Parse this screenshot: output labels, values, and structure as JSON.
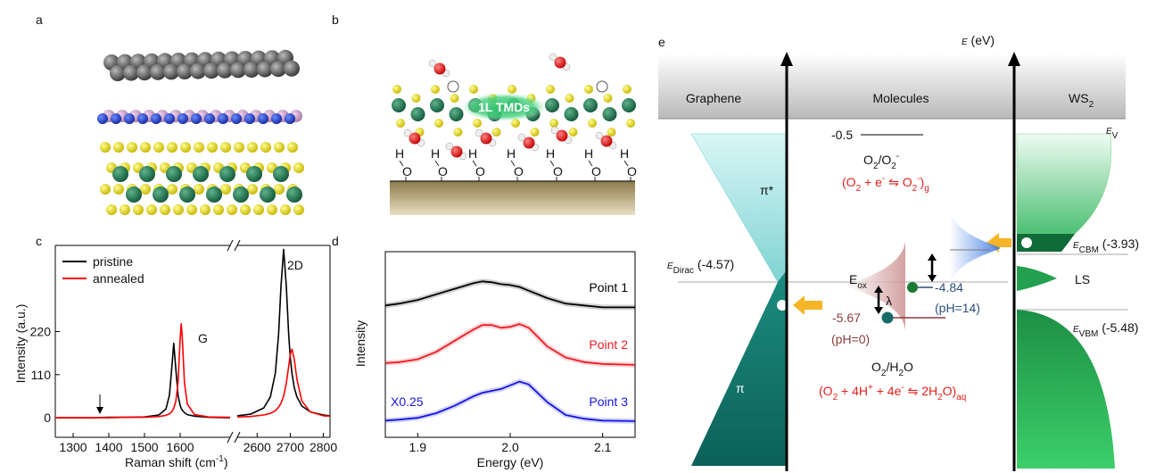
{
  "panel_labels": [
    "a",
    "b",
    "c",
    "d",
    "e"
  ],
  "panel_b": {
    "label": "1L TMDs",
    "hydroxyl": [
      "H",
      "O"
    ]
  },
  "chart_data": [
    {
      "type": "line",
      "x_label": [
        "Raman shift (cm",
        "-1",
        ")"
      ],
      "y_label": "Intensity (a.u.)",
      "x": [
        1250,
        1300,
        1350,
        1400,
        1450,
        1500,
        1540,
        1560,
        1570,
        1576,
        1582,
        1588,
        1594,
        1600,
        1603,
        1606,
        1612,
        1620,
        1640,
        1680,
        1740,
        2000,
        2540,
        2580,
        2620,
        2640,
        2655,
        2665,
        2672,
        2680,
        2688,
        2695,
        2700,
        2705,
        2712,
        2720,
        2735,
        2760,
        2800,
        2820
      ],
      "series": [
        {
          "name": "pristine",
          "color": "#000000",
          "values": [
            0,
            0,
            0,
            1,
            1,
            2,
            7,
            22,
            58,
            122,
            190,
            122,
            58,
            31,
            24,
            19,
            13,
            8,
            4,
            1,
            0,
            null,
            5,
            9,
            25,
            53,
            114,
            215,
            335,
            430,
            335,
            215,
            155,
            114,
            77,
            53,
            30,
            15,
            7,
            5
          ]
        },
        {
          "name": "annealed",
          "color": "#ff0000",
          "values": [
            0,
            0,
            0,
            0,
            1,
            1,
            3,
            6,
            10,
            15,
            24,
            43,
            90,
            203,
            240,
            203,
            90,
            35,
            8,
            2,
            1,
            null,
            2,
            3,
            7,
            11,
            18,
            27,
            37,
            55,
            88,
            130,
            161,
            175,
            150,
            98,
            43,
            15,
            5,
            4
          ]
        }
      ],
      "xlim": [
        [
          1250,
          1740
        ],
        [
          2540,
          2820
        ]
      ],
      "xticks": [
        1300,
        1400,
        1500,
        1600,
        2600,
        2700,
        2800
      ],
      "ylim": [
        -50,
        440
      ],
      "yticks": [
        0,
        110,
        220
      ],
      "legend": "upper left",
      "annotations": [
        "G",
        "2D"
      ]
    },
    {
      "type": "line",
      "x_label": "Energy (eV)",
      "y_label": "Intensity",
      "x": [
        1.865,
        1.88,
        1.9,
        1.92,
        1.94,
        1.96,
        1.97,
        1.98,
        1.99,
        2.0,
        2.01,
        2.02,
        2.04,
        2.06,
        2.08,
        2.1,
        2.135
      ],
      "series": [
        {
          "name": "Point 1",
          "color": "#000000",
          "values": [
            7.1,
            7.2,
            7.4,
            7.7,
            8.0,
            8.3,
            8.4,
            8.35,
            8.25,
            8.2,
            8.1,
            7.9,
            7.5,
            7.2,
            7.1,
            7.0,
            7.0
          ]
        },
        {
          "name": "Point 2",
          "color": "#ee1c25",
          "values": [
            4.0,
            4.05,
            4.2,
            4.6,
            5.2,
            5.8,
            6.05,
            6.05,
            5.9,
            5.95,
            6.1,
            5.9,
            4.9,
            4.3,
            4.05,
            3.95,
            3.9
          ]
        },
        {
          "name": "Point 3",
          "color": "#1515e6",
          "values": [
            0.9,
            0.95,
            1.05,
            1.3,
            1.7,
            2.2,
            2.4,
            2.5,
            2.6,
            2.8,
            3.0,
            2.85,
            1.9,
            1.2,
            1.0,
            0.9,
            0.87
          ]
        }
      ],
      "xlim": [
        1.865,
        2.135
      ],
      "xticks": [
        1.9,
        {
          "value": 2,
          "label": "2.0"
        },
        2.1
      ],
      "ylim": [
        0,
        10
      ],
      "annotations": [
        "X0.25"
      ]
    }
  ],
  "diagram": {
    "axis_label": [
      "E",
      " (eV)"
    ],
    "columns": {
      "graphene": "Graphene",
      "molecules": "Molecules",
      "ws2": [
        "WS",
        "2"
      ]
    },
    "graphene": {
      "pi_star": "π*",
      "pi": "π",
      "dirac": [
        "E",
        "Dirac",
        " (-4.57)"
      ]
    },
    "ws2": {
      "ev": [
        "E",
        "V"
      ],
      "cbm": [
        "E",
        "CBM",
        " (-3.93)"
      ],
      "ls": "LS",
      "vbm": [
        "E",
        "VBM",
        " (-5.48)"
      ]
    },
    "molecules": {
      "level": "-0.5",
      "couple1": [
        "O",
        "2",
        "/O",
        "2",
        "-"
      ],
      "reaction1": [
        "(O",
        "2",
        " + e",
        "-",
        " ⇋ O",
        "2",
        "-",
        ")",
        "g"
      ],
      "eox": [
        "E",
        "ox"
      ],
      "lambda": "λ",
      "ph14_level": "-4.84",
      "ph14": "(pH=14)",
      "ph0_level": "-5.67",
      "ph0": "(pH=0)",
      "couple2": [
        "O",
        "2",
        "/H",
        "2",
        "O"
      ],
      "reaction2": [
        "(O",
        "2",
        " + 4H",
        "+",
        " + 4e",
        "-",
        " ⇋ 2H",
        "2",
        "O)",
        "aq"
      ]
    }
  }
}
